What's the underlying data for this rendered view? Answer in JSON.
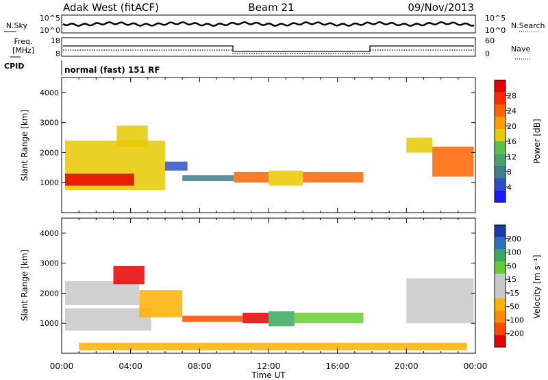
{
  "header": {
    "title": "Adak West (fitACF)",
    "beam": "Beam 21",
    "date": "09/Nov/2013"
  },
  "side_labels": {
    "nsky": "N.Sky",
    "nsearch": "N.Search",
    "freq_line1": "Freq.",
    "freq_line2": "[MHz]",
    "nave": "Nave",
    "cpid": "CPID"
  },
  "cpid_text": "normal (fast) 151 RF",
  "noise_panel": {
    "left_ticks": [
      "10^5",
      "10^0"
    ],
    "right_ticks": [
      "10^5",
      "10^0"
    ]
  },
  "freq_panel": {
    "left_ticks": [
      "18",
      "8"
    ],
    "right_ticks": [
      "60",
      "0"
    ]
  },
  "colors": {
    "power": [
      "#1a1aff",
      "#2f4fc0",
      "#3f7d8a",
      "#4aa36a",
      "#5cc14a",
      "#e8c800",
      "#ff9c00",
      "#ff6400",
      "#ff2a00",
      "#e60000"
    ],
    "velocity": [
      "#e60000",
      "#ff4a00",
      "#ff8c00",
      "#ffb000",
      "#c8c8c8",
      "#c8c8c8",
      "#66cc33",
      "#3aa860",
      "#2f6fc0",
      "#1a3aaa"
    ]
  },
  "chart_data": [
    {
      "type": "heatmap",
      "name": "power",
      "ylabel": "Slant Range [km]",
      "ylim": [
        0,
        4500
      ],
      "yticks": [
        1000,
        2000,
        3000,
        4000
      ],
      "xlim": [
        0,
        24
      ],
      "colorbar": {
        "label": "Power [dB]",
        "ticks": [
          "4",
          "8",
          "12",
          "16",
          "20",
          "24",
          "28"
        ],
        "range": [
          0,
          30
        ]
      },
      "regions": [
        {
          "x": [
            0.2,
            6.0
          ],
          "y": [
            750,
            2400
          ],
          "level": 0.55
        },
        {
          "x": [
            0.2,
            4.2
          ],
          "y": [
            900,
            1300
          ],
          "level": 0.95
        },
        {
          "x": [
            3.2,
            5.0
          ],
          "y": [
            2200,
            2900
          ],
          "level": 0.6
        },
        {
          "x": [
            6.0,
            7.3
          ],
          "y": [
            1400,
            1700
          ],
          "level": 0.1
        },
        {
          "x": [
            7.0,
            10.0
          ],
          "y": [
            1050,
            1250
          ],
          "level": 0.2
        },
        {
          "x": [
            10.0,
            12.0
          ],
          "y": [
            1000,
            1350
          ],
          "level": 0.75
        },
        {
          "x": [
            12.0,
            14.0
          ],
          "y": [
            900,
            1400
          ],
          "level": 0.55
        },
        {
          "x": [
            14.0,
            17.5
          ],
          "y": [
            1000,
            1350
          ],
          "level": 0.75
        },
        {
          "x": [
            20.0,
            21.5
          ],
          "y": [
            2000,
            2500
          ],
          "level": 0.55
        },
        {
          "x": [
            21.5,
            23.9
          ],
          "y": [
            1200,
            2200
          ],
          "level": 0.75
        }
      ]
    },
    {
      "type": "heatmap",
      "name": "velocity",
      "ylabel": "Slant Range [km]",
      "ylim": [
        0,
        4500
      ],
      "yticks": [
        1000,
        2000,
        3000,
        4000
      ],
      "xlim": [
        0,
        24
      ],
      "xticks": [
        "00:00",
        "04:00",
        "08:00",
        "12:00",
        "16:00",
        "20:00",
        "00:00"
      ],
      "xlabel": "Time UT",
      "colorbar": {
        "label": "Velocity [m s⁻¹]",
        "ticks": [
          "-200",
          "-100",
          "-50",
          "-15",
          "15",
          "50",
          "100",
          "200"
        ],
        "range": [
          -250,
          250
        ]
      },
      "regions": [
        {
          "x": [
            0.2,
            5.2
          ],
          "y": [
            750,
            1500
          ],
          "level": 0.45
        },
        {
          "x": [
            0.2,
            4.5
          ],
          "y": [
            1600,
            2400
          ],
          "level": 0.45
        },
        {
          "x": [
            3.0,
            4.8
          ],
          "y": [
            2300,
            2900
          ],
          "level": 0.05
        },
        {
          "x": [
            4.5,
            7.0
          ],
          "y": [
            1200,
            2100
          ],
          "level": 0.3
        },
        {
          "x": [
            7.0,
            10.5
          ],
          "y": [
            1050,
            1250
          ],
          "level": 0.15
        },
        {
          "x": [
            10.5,
            12.0
          ],
          "y": [
            1000,
            1350
          ],
          "level": 0.05
        },
        {
          "x": [
            12.0,
            13.5
          ],
          "y": [
            900,
            1400
          ],
          "level": 0.75
        },
        {
          "x": [
            13.5,
            17.5
          ],
          "y": [
            1000,
            1350
          ],
          "level": 0.7
        },
        {
          "x": [
            20.0,
            23.9
          ],
          "y": [
            1000,
            2500
          ],
          "level": 0.47
        },
        {
          "x": [
            1.0,
            23.5
          ],
          "y": [
            100,
            350
          ],
          "level": 0.3
        }
      ]
    }
  ]
}
